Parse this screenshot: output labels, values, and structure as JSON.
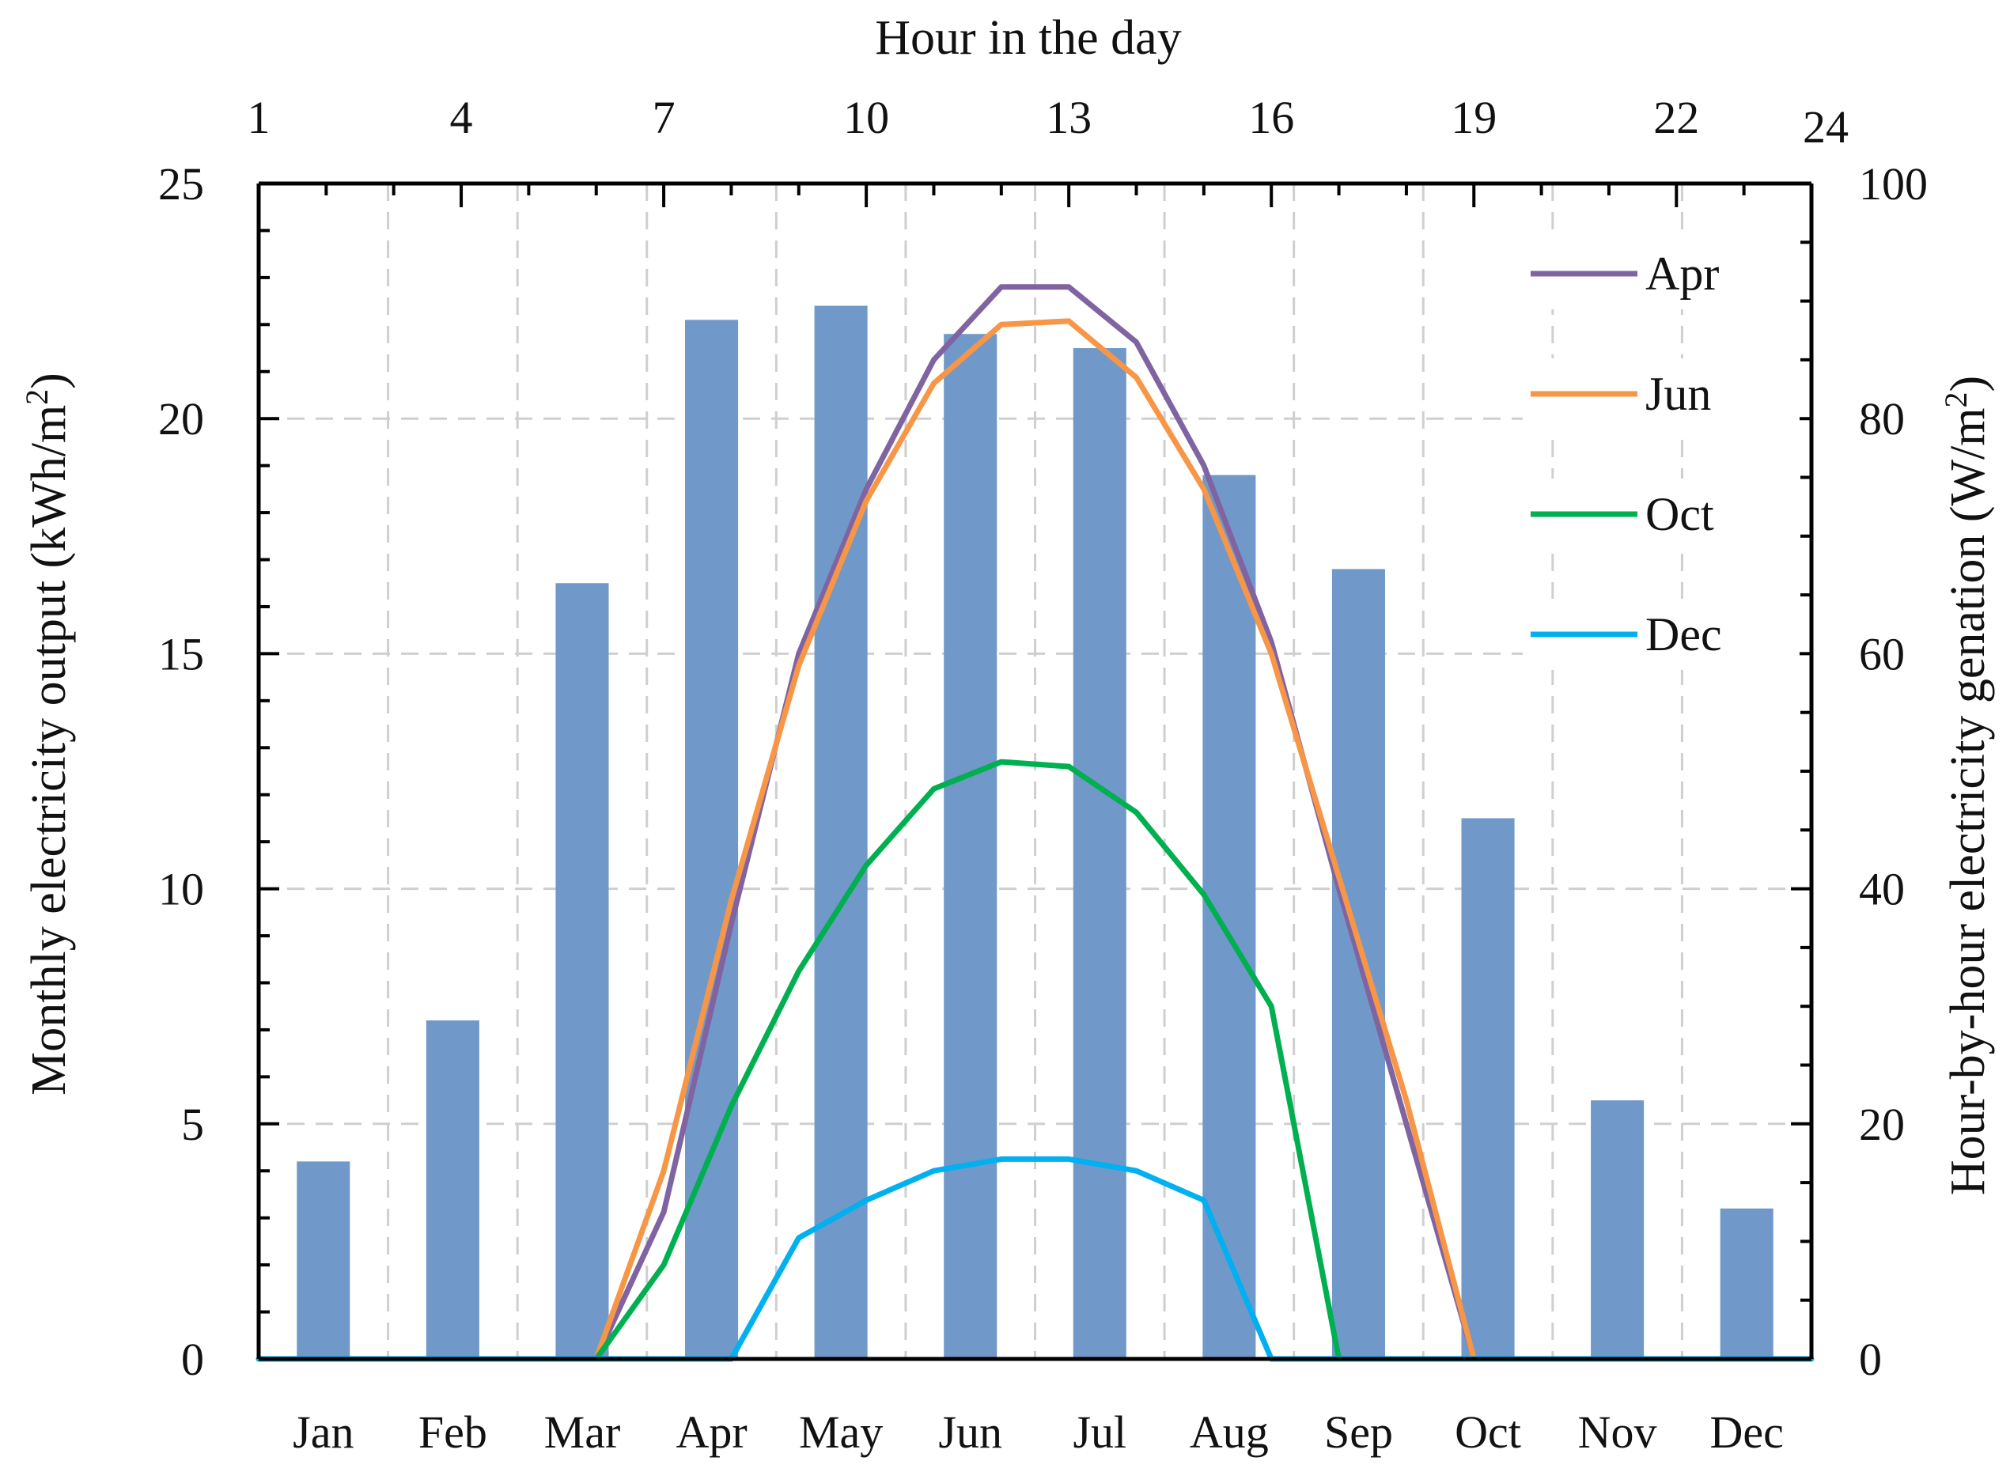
{
  "chart_data": {
    "type": "bar+line",
    "bar_series": {
      "name": "Monthly electricity output",
      "categories": [
        "Jan",
        "Feb",
        "Mar",
        "Apr",
        "May",
        "Jun",
        "Jul",
        "Aug",
        "Sep",
        "Oct",
        "Nov",
        "Dec"
      ],
      "values": [
        4.2,
        7.2,
        16.5,
        22.1,
        22.4,
        21.8,
        21.5,
        18.8,
        16.8,
        11.5,
        5.5,
        3.2
      ],
      "color": "#7099c9"
    },
    "line_series": [
      {
        "name": "Apr",
        "color": "#8064a2",
        "x": [
          6,
          7,
          8,
          9,
          10,
          11,
          12,
          13,
          14,
          15,
          16,
          17,
          18,
          19
        ],
        "y": [
          0,
          12.5,
          37,
          60,
          74,
          85,
          91.2,
          91.2,
          86.5,
          76,
          61,
          40,
          20,
          0
        ]
      },
      {
        "name": "Jun",
        "color": "#f79646",
        "x": [
          6,
          7,
          8,
          9,
          10,
          11,
          12,
          13,
          14,
          15,
          16,
          17,
          18,
          19
        ],
        "y": [
          0,
          16,
          39,
          59,
          73,
          83,
          88,
          88.3,
          83.5,
          74,
          60,
          41,
          22,
          0
        ]
      },
      {
        "name": "Oct",
        "color": "#00b050",
        "x": [
          6,
          7,
          8,
          9,
          10,
          11,
          12,
          13,
          14,
          15,
          16,
          17
        ],
        "y": [
          0,
          8,
          21.5,
          33,
          42,
          48.5,
          50.8,
          50.4,
          46.5,
          39.5,
          30,
          0
        ]
      },
      {
        "name": "Dec",
        "color": "#00b0f0",
        "x": [
          1,
          8,
          9,
          10,
          11,
          12,
          13,
          14,
          15,
          16,
          24
        ],
        "y": [
          0,
          0,
          10.3,
          13.5,
          16,
          17,
          17,
          16,
          13.5,
          0,
          0
        ]
      }
    ],
    "xlabel_top": "Hour in the day",
    "xticks_top": [
      "1",
      "4",
      "7",
      "10",
      "13",
      "16",
      "19",
      "22",
      "24"
    ],
    "ylabel_left": "Monthly electricity output (kWh/m",
    "ylabel_left_sup": "2",
    "ylabel_left_end": ")",
    "ylim_left": [
      0,
      25
    ],
    "yticks_left": [
      "0",
      "5",
      "10",
      "15",
      "20",
      "25"
    ],
    "ylabel_right": "Hour-by-hour electricity genation (W/m",
    "ylabel_right_sup": "2",
    "ylabel_right_end": ")",
    "ylim_right": [
      0,
      100
    ],
    "yticks_right": [
      "0",
      "20",
      "40",
      "60",
      "80",
      "100"
    ],
    "xlim_top": [
      1,
      24
    ],
    "grid": true,
    "legend_position": "top-right"
  }
}
